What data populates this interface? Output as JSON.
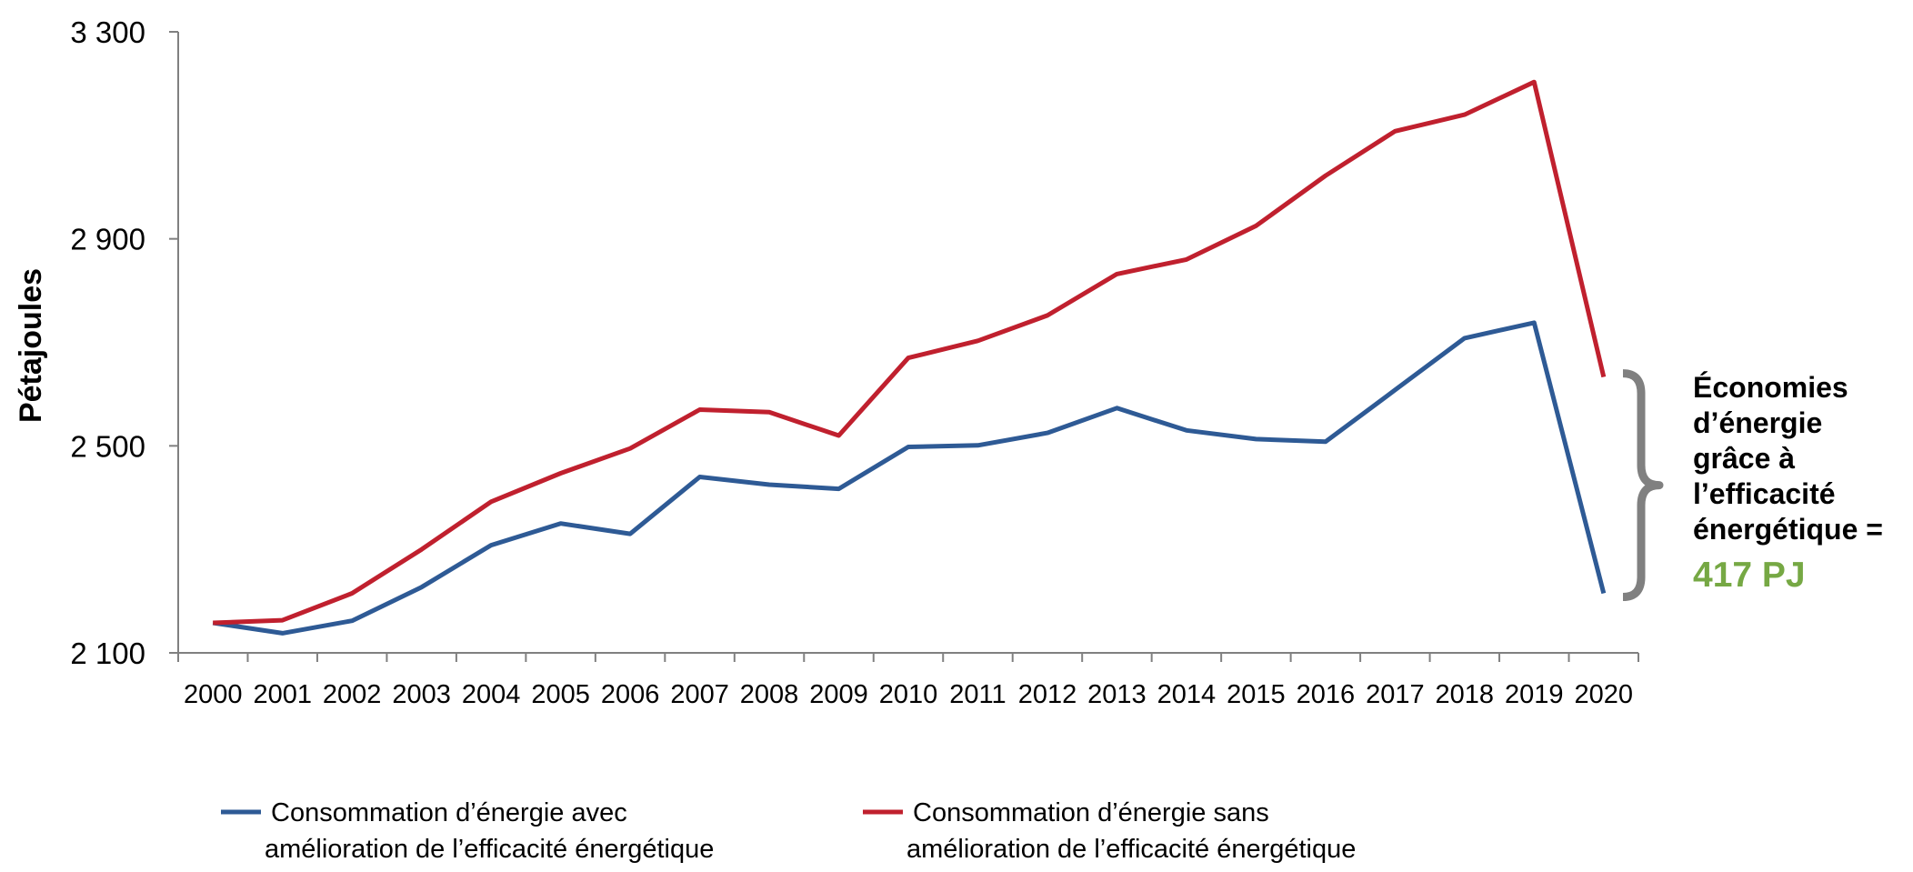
{
  "chart_data": {
    "type": "line",
    "title": "",
    "xlabel": "",
    "ylabel": "Pétajoules",
    "ylim": [
      2100,
      3300
    ],
    "yticks": [
      2100,
      2500,
      2900,
      3300
    ],
    "ytick_labels": [
      "2 100",
      "2 500",
      "2 900",
      "3 300"
    ],
    "x": [
      "2000",
      "2001",
      "2002",
      "2003",
      "2004",
      "2005",
      "2006",
      "2007",
      "2008",
      "2009",
      "2010",
      "2011",
      "2012",
      "2013",
      "2014",
      "2015",
      "2016",
      "2017",
      "2018",
      "2019",
      "2020"
    ],
    "series": [
      {
        "name": "Consommation d’énergie avec amélioration de l’efficacité énergétique",
        "legend_lines": [
          "Consommation d’énergie avec",
          "amélioration de l’efficacité énergétique"
        ],
        "color": "#2e5a95",
        "values": [
          2158,
          2138,
          2162,
          2227,
          2308,
          2350,
          2330,
          2440,
          2425,
          2417,
          2498,
          2501,
          2525,
          2573,
          2530,
          2513,
          2508,
          2608,
          2708,
          2738,
          2215
        ]
      },
      {
        "name": "Consommation d’énergie sans amélioration de l’efficacité énergétique",
        "legend_lines": [
          "Consommation d’énergie sans",
          "amélioration de l’efficacité énergétique"
        ],
        "color": "#c0202e",
        "values": [
          2158,
          2163,
          2215,
          2300,
          2392,
          2447,
          2495,
          2570,
          2565,
          2520,
          2670,
          2703,
          2752,
          2832,
          2860,
          2925,
          3022,
          3108,
          3140,
          3203,
          2633
        ]
      }
    ],
    "annotation": {
      "lines": [
        "Économies",
        "d’énergie",
        "grâce à",
        "l’efficacité",
        "énergétique ="
      ],
      "value": "417 PJ",
      "value_color": "#76a844",
      "brace_color": "#808080"
    },
    "grid": false,
    "legend_position": "bottom"
  }
}
